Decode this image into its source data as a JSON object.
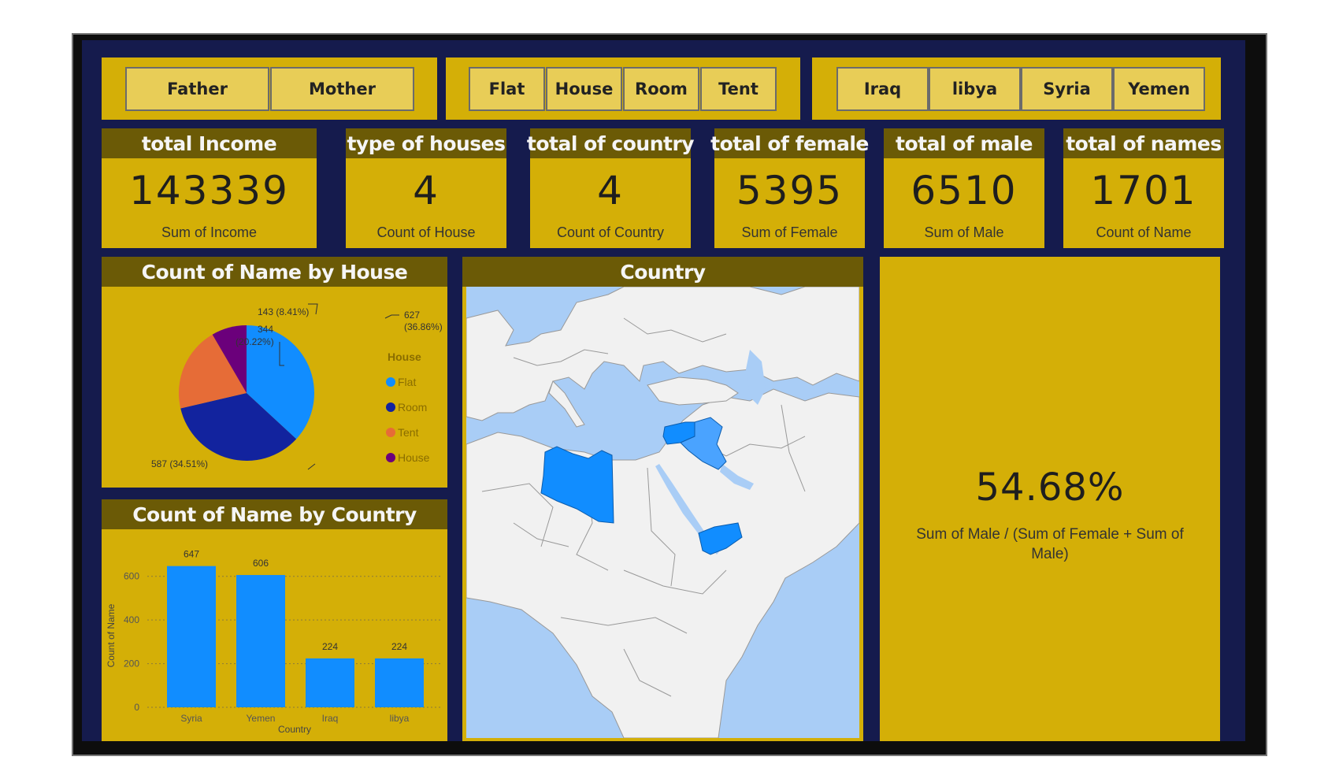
{
  "slicers": {
    "parent": [
      "Father",
      "Mother"
    ],
    "house": [
      "Flat",
      "House",
      "Room",
      "Tent"
    ],
    "country": [
      "Iraq",
      "libya",
      "Syria",
      "Yemen"
    ]
  },
  "cards": [
    {
      "title": "total Income",
      "value": "143339",
      "caption": "Sum of Income"
    },
    {
      "title": "type of houses",
      "value": "4",
      "caption": "Count of House"
    },
    {
      "title": "total of country",
      "value": "4",
      "caption": "Count of Country"
    },
    {
      "title": "total of female",
      "value": "5395",
      "caption": "Sum of Female"
    },
    {
      "title": "total of male",
      "value": "6510",
      "caption": "Sum of Male"
    },
    {
      "title": "total of names",
      "value": "1701",
      "caption": "Count of Name"
    }
  ],
  "pie_panel": {
    "title": "Count of Name by House",
    "legend_title": "House"
  },
  "bar_panel": {
    "title": "Count of Name by Country"
  },
  "map_panel": {
    "title": "Country"
  },
  "kpi": {
    "value": "54.68%",
    "caption": "Sum of Male / (Sum of Female + Sum of Male)"
  },
  "colors": {
    "panel": "#d4af07",
    "panel_header": "#6b5a06",
    "board": "#151b4d",
    "flat": "#118dff",
    "room": "#12239e",
    "tent": "#e66c37",
    "house": "#6b007b",
    "bar": "#118dff"
  },
  "chart_data": [
    {
      "type": "pie",
      "title": "Count of Name by House",
      "legend_title": "House",
      "slices": [
        {
          "label": "Flat",
          "value": 627,
          "percent": "36.86%",
          "text": "627",
          "text2": "(36.86%)"
        },
        {
          "label": "Room",
          "value": 587,
          "percent": "34.51%",
          "text": "587 (34.51%)"
        },
        {
          "label": "Tent",
          "value": 344,
          "percent": "20.22%",
          "text": "344",
          "text2": "(20.22%)"
        },
        {
          "label": "House",
          "value": 143,
          "percent": "8.41%",
          "text": "143 (8.41%)"
        }
      ]
    },
    {
      "type": "bar",
      "title": "Count of Name by Country",
      "xlabel": "Country",
      "ylabel": "Count of Name",
      "categories": [
        "Syria",
        "Yemen",
        "Iraq",
        "libya"
      ],
      "values": [
        647,
        606,
        224,
        224
      ],
      "ylim": [
        0,
        700
      ],
      "yticks": [
        0,
        200,
        400,
        600
      ],
      "grid": true
    }
  ]
}
